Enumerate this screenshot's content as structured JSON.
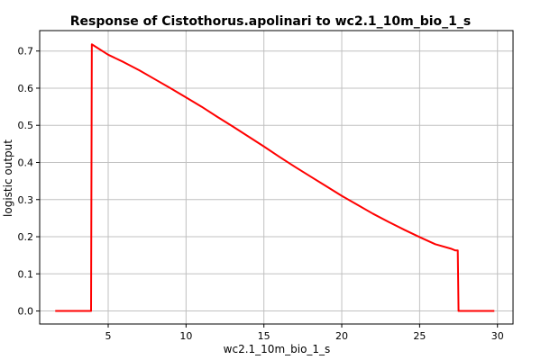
{
  "chart_data": {
    "type": "line",
    "title": "Response of Cistothorus.apolinari to wc2.1_10m_bio_1_s",
    "xlabel": "wc2.1_10m_bio_1_s",
    "ylabel": "logistic output",
    "xlim": [
      0.6,
      31.0
    ],
    "ylim": [
      -0.035,
      0.755
    ],
    "xticks": [
      5,
      10,
      15,
      20,
      25,
      30
    ],
    "yticks": [
      0.0,
      0.1,
      0.2,
      0.3,
      0.4,
      0.5,
      0.6,
      0.7
    ],
    "grid": true,
    "series": [
      {
        "color": "#ff0000",
        "x": [
          1.6,
          3.9,
          3.95,
          5,
          6,
          7,
          8,
          9,
          10,
          11,
          12,
          13,
          14,
          15,
          16,
          17,
          18,
          19,
          20,
          21,
          22,
          23,
          24,
          25,
          26,
          27,
          27.3,
          27.45,
          27.5,
          29.8
        ],
        "y": [
          0.0,
          0.0,
          0.718,
          0.69,
          0.67,
          0.648,
          0.624,
          0.6,
          0.575,
          0.55,
          0.523,
          0.497,
          0.47,
          0.443,
          0.415,
          0.388,
          0.362,
          0.336,
          0.31,
          0.286,
          0.262,
          0.24,
          0.219,
          0.199,
          0.18,
          0.168,
          0.163,
          0.163,
          0.0,
          0.0
        ]
      }
    ]
  }
}
